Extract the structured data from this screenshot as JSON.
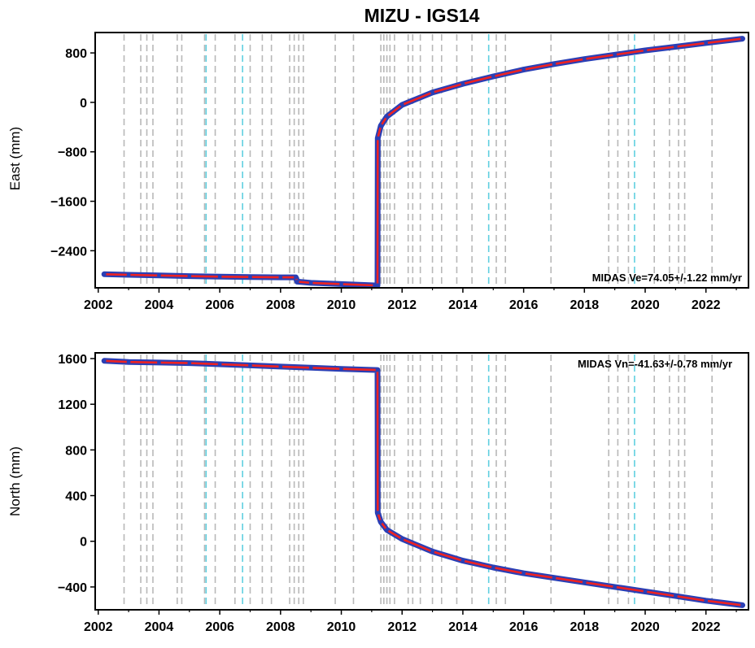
{
  "chart_data": [
    {
      "type": "line",
      "title": "MIZU - IGS14",
      "xlabel": "",
      "ylabel": "East (mm)",
      "xlim": [
        2001.9,
        2023.4
      ],
      "ylim": [
        -3000,
        1130
      ],
      "xticks": [
        2002,
        2004,
        2006,
        2008,
        2010,
        2012,
        2014,
        2016,
        2018,
        2020,
        2022
      ],
      "yticks": [
        800,
        0,
        -800,
        -1600,
        -2400
      ],
      "annotation": "MIDAS Ve=74.05+/-1.22 mm/yr",
      "grid": false,
      "dashed_lines_gray": [
        2002.85,
        2003.4,
        2003.6,
        2003.8,
        2004.6,
        2004.75,
        2005.5,
        2005.85,
        2006.5,
        2007.0,
        2007.4,
        2007.7,
        2008.3,
        2008.45,
        2008.6,
        2008.75,
        2009.8,
        2010.4,
        2011.3,
        2011.4,
        2011.5,
        2011.6,
        2011.75,
        2012.2,
        2012.35,
        2012.6,
        2013.0,
        2013.3,
        2013.8,
        2014.3,
        2015.1,
        2015.4,
        2016.9,
        2018.8,
        2019.1,
        2019.45,
        2020.3,
        2020.8,
        2021.1,
        2021.3,
        2022.2
      ],
      "dashed_lines_cyan": [
        2005.55,
        2006.75,
        2014.85,
        2019.65
      ],
      "series": [
        {
          "x": [
            2002.2,
            2003.0,
            2004.0,
            2005.0,
            2006.0,
            2007.0,
            2008.0,
            2008.5,
            2008.55,
            2009.0,
            2010.0,
            2011.1,
            2011.19,
            2011.2,
            2011.3,
            2011.5,
            2012.0,
            2013.0,
            2014.0,
            2015.0,
            2016.0,
            2017.0,
            2018.0,
            2019.0,
            2020.0,
            2021.0,
            2022.0,
            2023.2
          ],
          "y": [
            -2780,
            -2790,
            -2800,
            -2810,
            -2820,
            -2825,
            -2830,
            -2830,
            -2900,
            -2920,
            -2940,
            -2960,
            -2960,
            -580,
            -380,
            -230,
            -40,
            160,
            300,
            420,
            530,
            620,
            700,
            770,
            840,
            900,
            960,
            1030
          ]
        }
      ]
    },
    {
      "type": "line",
      "title": "",
      "xlabel": "",
      "ylabel": "North (mm)",
      "xlim": [
        2001.9,
        2023.4
      ],
      "ylim": [
        -600,
        1650
      ],
      "xticks": [
        2002,
        2004,
        2006,
        2008,
        2010,
        2012,
        2014,
        2016,
        2018,
        2020,
        2022
      ],
      "yticks": [
        1600,
        1200,
        800,
        400,
        0,
        -400
      ],
      "annotation": "MIDAS Vn=-41.63+/-0.78 mm/yr",
      "grid": false,
      "dashed_lines_gray": [
        2002.85,
        2003.4,
        2003.6,
        2003.8,
        2004.6,
        2004.75,
        2005.5,
        2005.85,
        2006.5,
        2007.0,
        2007.4,
        2007.7,
        2008.3,
        2008.45,
        2008.6,
        2008.75,
        2009.8,
        2010.4,
        2011.3,
        2011.4,
        2011.5,
        2011.6,
        2011.75,
        2012.2,
        2012.35,
        2012.6,
        2013.0,
        2013.3,
        2013.8,
        2014.3,
        2015.1,
        2015.4,
        2016.9,
        2018.8,
        2019.1,
        2019.45,
        2020.3,
        2020.8,
        2021.1,
        2021.3,
        2022.2
      ],
      "dashed_lines_cyan": [
        2005.55,
        2006.75,
        2014.85,
        2019.65
      ],
      "series": [
        {
          "x": [
            2002.2,
            2003.0,
            2004.0,
            2005.0,
            2006.0,
            2007.0,
            2008.0,
            2009.0,
            2010.0,
            2011.19,
            2011.2,
            2011.3,
            2011.5,
            2012.0,
            2013.0,
            2014.0,
            2015.0,
            2016.0,
            2017.0,
            2018.0,
            2019.0,
            2020.0,
            2021.0,
            2022.0,
            2023.2
          ],
          "y": [
            1580,
            1570,
            1565,
            1560,
            1550,
            1540,
            1530,
            1520,
            1510,
            1500,
            250,
            170,
            100,
            20,
            -90,
            -170,
            -230,
            -280,
            -320,
            -360,
            -400,
            -440,
            -480,
            -520,
            -560
          ]
        }
      ]
    }
  ]
}
